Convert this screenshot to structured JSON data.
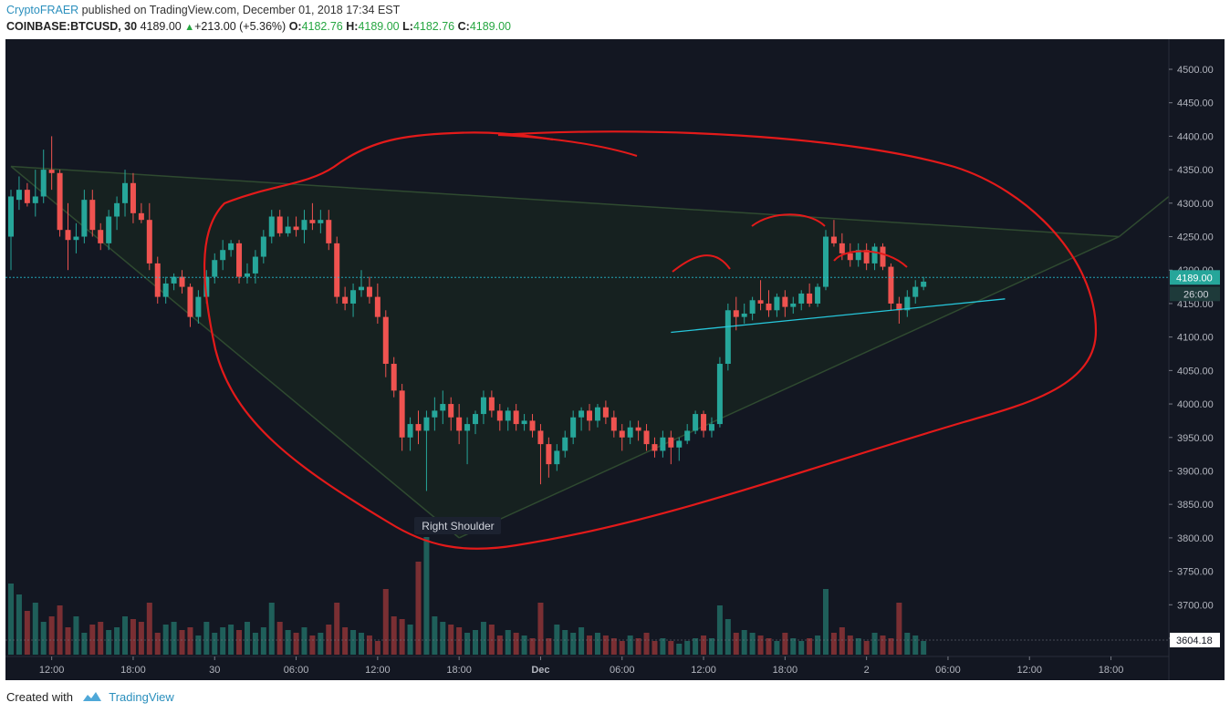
{
  "header": {
    "author": "CryptoFRAER",
    "published_text": " published on TradingView.com, December 01, 2018 17:34 EST",
    "symbol": "COINBASE:BTCUSD, 30",
    "last": "4189.00",
    "change": "+213.00 (+5.36%)",
    "o_label": "O:",
    "o_value": "4182.76",
    "h_label": "H:",
    "h_value": "4189.00",
    "l_label": "L:",
    "l_value": "4182.76",
    "c_label": "C:",
    "c_value": "4189.00"
  },
  "footer": {
    "created_with": "Created with",
    "brand": "TradingView",
    "logo_icon": "tradingview-logo-icon"
  },
  "colors": {
    "background": "#131722",
    "up": "#26a69a",
    "down": "#ef5350",
    "annotation": "#e31a1a",
    "trendline": "#26c6da",
    "pattern_line": "#2f4a30",
    "price_label": "#26a69a"
  },
  "chart_data": {
    "type": "candlestick",
    "ylim": [
      3604.18,
      4530
    ],
    "yticks": [
      "4500.00",
      "4450.00",
      "4400.00",
      "4350.00",
      "4300.00",
      "4250.00",
      "4200.00",
      "4150.00",
      "4100.00",
      "4050.00",
      "4000.00",
      "3950.00",
      "3900.00",
      "3850.00",
      "3800.00",
      "3750.00",
      "3700.00",
      "3650.00"
    ],
    "ytick_values": [
      4500,
      4450,
      4400,
      4350,
      4300,
      4250,
      4200,
      4150,
      4100,
      4050,
      4000,
      3950,
      3900,
      3850,
      3800,
      3750,
      3700,
      3650
    ],
    "xticks": [
      {
        "label": "12:00",
        "slot": 5
      },
      {
        "label": "18:00",
        "slot": 15
      },
      {
        "label": "30",
        "slot": 25
      },
      {
        "label": "06:00",
        "slot": 35
      },
      {
        "label": "12:00",
        "slot": 45
      },
      {
        "label": "18:00",
        "slot": 55
      },
      {
        "label": "Dec",
        "slot": 65,
        "bold": true
      },
      {
        "label": "06:00",
        "slot": 75
      },
      {
        "label": "12:00",
        "slot": 85
      },
      {
        "label": "18:00",
        "slot": 95
      },
      {
        "label": "2",
        "slot": 105
      },
      {
        "label": "06:00",
        "slot": 115
      },
      {
        "label": "12:00",
        "slot": 125
      },
      {
        "label": "18:00",
        "slot": 135
      }
    ],
    "last_price_label": "4189.00",
    "last_price": 4189,
    "countdown_label": "26:00",
    "volume_label": "3604.18",
    "annotation_label": "Right Shoulder",
    "candles": [
      [
        4250,
        4320,
        4200,
        4310
      ],
      [
        4305,
        4340,
        4290,
        4320
      ],
      [
        4320,
        4330,
        4295,
        4300
      ],
      [
        4300,
        4350,
        4280,
        4310
      ],
      [
        4310,
        4380,
        4300,
        4350
      ],
      [
        4350,
        4400,
        4320,
        4345
      ],
      [
        4345,
        4350,
        4250,
        4260
      ],
      [
        4260,
        4300,
        4200,
        4245
      ],
      [
        4245,
        4270,
        4225,
        4250
      ],
      [
        4250,
        4320,
        4240,
        4305
      ],
      [
        4305,
        4320,
        4250,
        4260
      ],
      [
        4260,
        4270,
        4230,
        4240
      ],
      [
        4240,
        4290,
        4230,
        4280
      ],
      [
        4280,
        4310,
        4260,
        4300
      ],
      [
        4300,
        4350,
        4280,
        4330
      ],
      [
        4330,
        4345,
        4270,
        4285
      ],
      [
        4285,
        4300,
        4270,
        4275
      ],
      [
        4275,
        4300,
        4200,
        4210
      ],
      [
        4210,
        4220,
        4150,
        4160
      ],
      [
        4160,
        4190,
        4150,
        4180
      ],
      [
        4180,
        4195,
        4170,
        4190
      ],
      [
        4190,
        4200,
        4165,
        4175
      ],
      [
        4175,
        4180,
        4115,
        4130
      ],
      [
        4130,
        4170,
        4120,
        4160
      ],
      [
        4160,
        4200,
        4150,
        4190
      ],
      [
        4190,
        4225,
        4180,
        4215
      ],
      [
        4215,
        4245,
        4200,
        4230
      ],
      [
        4230,
        4245,
        4220,
        4240
      ],
      [
        4240,
        4245,
        4180,
        4190
      ],
      [
        4190,
        4210,
        4180,
        4195
      ],
      [
        4195,
        4230,
        4180,
        4220
      ],
      [
        4220,
        4260,
        4210,
        4250
      ],
      [
        4250,
        4290,
        4240,
        4280
      ],
      [
        4280,
        4290,
        4250,
        4255
      ],
      [
        4255,
        4280,
        4250,
        4265
      ],
      [
        4265,
        4280,
        4250,
        4260
      ],
      [
        4260,
        4290,
        4240,
        4275
      ],
      [
        4275,
        4300,
        4260,
        4270
      ],
      [
        4270,
        4290,
        4255,
        4275
      ],
      [
        4275,
        4290,
        4230,
        4240
      ],
      [
        4240,
        4250,
        4150,
        4160
      ],
      [
        4160,
        4175,
        4140,
        4150
      ],
      [
        4150,
        4180,
        4130,
        4170
      ],
      [
        4170,
        4200,
        4160,
        4175
      ],
      [
        4175,
        4190,
        4150,
        4160
      ],
      [
        4160,
        4180,
        4120,
        4130
      ],
      [
        4130,
        4140,
        4040,
        4060
      ],
      [
        4060,
        4070,
        4010,
        4020
      ],
      [
        4020,
        4030,
        3930,
        3950
      ],
      [
        3950,
        3980,
        3930,
        3970
      ],
      [
        3970,
        3990,
        3940,
        3960
      ],
      [
        3960,
        3990,
        3870,
        3980
      ],
      [
        3980,
        4010,
        3960,
        3990
      ],
      [
        3990,
        4020,
        3970,
        4000
      ],
      [
        4000,
        4010,
        3960,
        3980
      ],
      [
        3980,
        4000,
        3940,
        3960
      ],
      [
        3960,
        3980,
        3910,
        3970
      ],
      [
        3970,
        3990,
        3955,
        3985
      ],
      [
        3985,
        4020,
        3970,
        4010
      ],
      [
        4010,
        4020,
        3980,
        3990
      ],
      [
        3990,
        4000,
        3960,
        3975
      ],
      [
        3975,
        3995,
        3960,
        3990
      ],
      [
        3990,
        4000,
        3960,
        3970
      ],
      [
        3970,
        3985,
        3960,
        3975
      ],
      [
        3975,
        3985,
        3950,
        3960
      ],
      [
        3960,
        3970,
        3880,
        3940
      ],
      [
        3940,
        3950,
        3890,
        3910
      ],
      [
        3910,
        3940,
        3900,
        3930
      ],
      [
        3930,
        3960,
        3920,
        3950
      ],
      [
        3950,
        3990,
        3940,
        3980
      ],
      [
        3980,
        3995,
        3960,
        3990
      ],
      [
        3990,
        4000,
        3960,
        3975
      ],
      [
        3975,
        4000,
        3965,
        3995
      ],
      [
        3995,
        4005,
        3970,
        3980
      ],
      [
        3980,
        3990,
        3950,
        3960
      ],
      [
        3960,
        3970,
        3930,
        3950
      ],
      [
        3950,
        3975,
        3940,
        3965
      ],
      [
        3965,
        3975,
        3945,
        3960
      ],
      [
        3960,
        3970,
        3930,
        3940
      ],
      [
        3940,
        3950,
        3920,
        3930
      ],
      [
        3930,
        3960,
        3920,
        3950
      ],
      [
        3950,
        3960,
        3910,
        3935
      ],
      [
        3935,
        3950,
        3915,
        3945
      ],
      [
        3945,
        3970,
        3940,
        3960
      ],
      [
        3960,
        3990,
        3955,
        3985
      ],
      [
        3985,
        3990,
        3950,
        3960
      ],
      [
        3960,
        3980,
        3950,
        3970
      ],
      [
        3970,
        4070,
        3965,
        4060
      ],
      [
        4060,
        4150,
        4050,
        4140
      ],
      [
        4140,
        4160,
        4110,
        4130
      ],
      [
        4130,
        4150,
        4120,
        4135
      ],
      [
        4135,
        4160,
        4125,
        4155
      ],
      [
        4155,
        4185,
        4140,
        4150
      ],
      [
        4150,
        4170,
        4130,
        4140
      ],
      [
        4140,
        4165,
        4130,
        4160
      ],
      [
        4160,
        4170,
        4130,
        4145
      ],
      [
        4145,
        4160,
        4135,
        4150
      ],
      [
        4150,
        4170,
        4140,
        4165
      ],
      [
        4165,
        4180,
        4145,
        4150
      ],
      [
        4150,
        4180,
        4145,
        4175
      ],
      [
        4175,
        4260,
        4170,
        4250
      ],
      [
        4250,
        4275,
        4235,
        4240
      ],
      [
        4240,
        4255,
        4215,
        4225
      ],
      [
        4225,
        4240,
        4205,
        4215
      ],
      [
        4215,
        4240,
        4205,
        4230
      ],
      [
        4230,
        4240,
        4200,
        4210
      ],
      [
        4210,
        4240,
        4200,
        4235
      ],
      [
        4235,
        4240,
        4200,
        4205
      ],
      [
        4205,
        4210,
        4140,
        4150
      ],
      [
        4150,
        4160,
        4120,
        4140
      ],
      [
        4140,
        4170,
        4130,
        4160
      ],
      [
        4160,
        4185,
        4150,
        4175
      ],
      [
        4175,
        4190,
        4170,
        4182.76
      ]
    ],
    "volumes": [
      130,
      110,
      80,
      95,
      60,
      70,
      90,
      50,
      70,
      40,
      55,
      60,
      45,
      50,
      70,
      65,
      60,
      95,
      40,
      55,
      60,
      45,
      50,
      35,
      60,
      40,
      50,
      55,
      45,
      60,
      40,
      50,
      95,
      60,
      45,
      40,
      50,
      35,
      40,
      55,
      95,
      50,
      45,
      40,
      35,
      25,
      120,
      70,
      65,
      55,
      170,
      215,
      70,
      60,
      55,
      50,
      40,
      45,
      60,
      55,
      35,
      45,
      40,
      35,
      30,
      95,
      30,
      55,
      45,
      40,
      50,
      35,
      40,
      35,
      30,
      25,
      35,
      30,
      40,
      25,
      30,
      25,
      20,
      25,
      30,
      35,
      30,
      90,
      65,
      40,
      45,
      40,
      35,
      30,
      25,
      40,
      30,
      25,
      30,
      35,
      120,
      40,
      50,
      35,
      30,
      25,
      40,
      35,
      30,
      95,
      40,
      35,
      25
    ],
    "pattern_lines": [
      {
        "from": [
          0,
          4355
        ],
        "to": [
          136,
          4250
        ]
      },
      {
        "from": [
          0,
          4355
        ],
        "to": [
          55,
          3800
        ]
      },
      {
        "from": [
          55,
          3800
        ],
        "to": [
          136,
          4250
        ]
      }
    ],
    "trendline": {
      "from": [
        81,
        4107
      ],
      "to": [
        122,
        4157
      ]
    }
  }
}
